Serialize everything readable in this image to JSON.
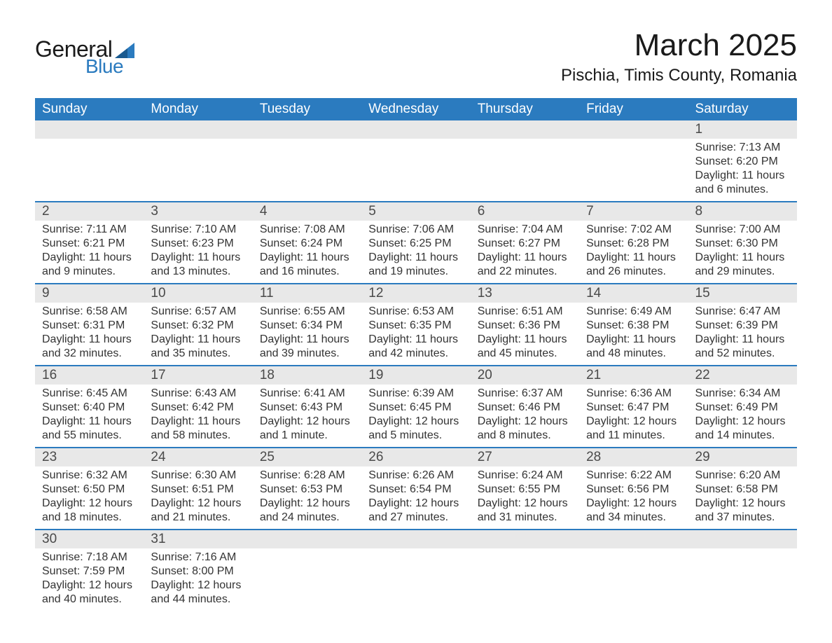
{
  "logo": {
    "general": "General",
    "blue": "Blue"
  },
  "title": "March 2025",
  "location": "Pischia, Timis County, Romania",
  "colors": {
    "header_bg": "#2b7bbf",
    "header_text": "#ffffff",
    "daynum_bg": "#e8e8e8",
    "row_border": "#2b7bbf",
    "body_text": "#333333",
    "title_text": "#1a1a1a",
    "logo_blue": "#2b7bbf",
    "page_bg": "#ffffff"
  },
  "day_headers": [
    "Sunday",
    "Monday",
    "Tuesday",
    "Wednesday",
    "Thursday",
    "Friday",
    "Saturday"
  ],
  "weeks": [
    [
      {
        "n": "",
        "sr": "",
        "ss": "",
        "dl": ""
      },
      {
        "n": "",
        "sr": "",
        "ss": "",
        "dl": ""
      },
      {
        "n": "",
        "sr": "",
        "ss": "",
        "dl": ""
      },
      {
        "n": "",
        "sr": "",
        "ss": "",
        "dl": ""
      },
      {
        "n": "",
        "sr": "",
        "ss": "",
        "dl": ""
      },
      {
        "n": "",
        "sr": "",
        "ss": "",
        "dl": ""
      },
      {
        "n": "1",
        "sr": "Sunrise: 7:13 AM",
        "ss": "Sunset: 6:20 PM",
        "dl": "Daylight: 11 hours and 6 minutes."
      }
    ],
    [
      {
        "n": "2",
        "sr": "Sunrise: 7:11 AM",
        "ss": "Sunset: 6:21 PM",
        "dl": "Daylight: 11 hours and 9 minutes."
      },
      {
        "n": "3",
        "sr": "Sunrise: 7:10 AM",
        "ss": "Sunset: 6:23 PM",
        "dl": "Daylight: 11 hours and 13 minutes."
      },
      {
        "n": "4",
        "sr": "Sunrise: 7:08 AM",
        "ss": "Sunset: 6:24 PM",
        "dl": "Daylight: 11 hours and 16 minutes."
      },
      {
        "n": "5",
        "sr": "Sunrise: 7:06 AM",
        "ss": "Sunset: 6:25 PM",
        "dl": "Daylight: 11 hours and 19 minutes."
      },
      {
        "n": "6",
        "sr": "Sunrise: 7:04 AM",
        "ss": "Sunset: 6:27 PM",
        "dl": "Daylight: 11 hours and 22 minutes."
      },
      {
        "n": "7",
        "sr": "Sunrise: 7:02 AM",
        "ss": "Sunset: 6:28 PM",
        "dl": "Daylight: 11 hours and 26 minutes."
      },
      {
        "n": "8",
        "sr": "Sunrise: 7:00 AM",
        "ss": "Sunset: 6:30 PM",
        "dl": "Daylight: 11 hours and 29 minutes."
      }
    ],
    [
      {
        "n": "9",
        "sr": "Sunrise: 6:58 AM",
        "ss": "Sunset: 6:31 PM",
        "dl": "Daylight: 11 hours and 32 minutes."
      },
      {
        "n": "10",
        "sr": "Sunrise: 6:57 AM",
        "ss": "Sunset: 6:32 PM",
        "dl": "Daylight: 11 hours and 35 minutes."
      },
      {
        "n": "11",
        "sr": "Sunrise: 6:55 AM",
        "ss": "Sunset: 6:34 PM",
        "dl": "Daylight: 11 hours and 39 minutes."
      },
      {
        "n": "12",
        "sr": "Sunrise: 6:53 AM",
        "ss": "Sunset: 6:35 PM",
        "dl": "Daylight: 11 hours and 42 minutes."
      },
      {
        "n": "13",
        "sr": "Sunrise: 6:51 AM",
        "ss": "Sunset: 6:36 PM",
        "dl": "Daylight: 11 hours and 45 minutes."
      },
      {
        "n": "14",
        "sr": "Sunrise: 6:49 AM",
        "ss": "Sunset: 6:38 PM",
        "dl": "Daylight: 11 hours and 48 minutes."
      },
      {
        "n": "15",
        "sr": "Sunrise: 6:47 AM",
        "ss": "Sunset: 6:39 PM",
        "dl": "Daylight: 11 hours and 52 minutes."
      }
    ],
    [
      {
        "n": "16",
        "sr": "Sunrise: 6:45 AM",
        "ss": "Sunset: 6:40 PM",
        "dl": "Daylight: 11 hours and 55 minutes."
      },
      {
        "n": "17",
        "sr": "Sunrise: 6:43 AM",
        "ss": "Sunset: 6:42 PM",
        "dl": "Daylight: 11 hours and 58 minutes."
      },
      {
        "n": "18",
        "sr": "Sunrise: 6:41 AM",
        "ss": "Sunset: 6:43 PM",
        "dl": "Daylight: 12 hours and 1 minute."
      },
      {
        "n": "19",
        "sr": "Sunrise: 6:39 AM",
        "ss": "Sunset: 6:45 PM",
        "dl": "Daylight: 12 hours and 5 minutes."
      },
      {
        "n": "20",
        "sr": "Sunrise: 6:37 AM",
        "ss": "Sunset: 6:46 PM",
        "dl": "Daylight: 12 hours and 8 minutes."
      },
      {
        "n": "21",
        "sr": "Sunrise: 6:36 AM",
        "ss": "Sunset: 6:47 PM",
        "dl": "Daylight: 12 hours and 11 minutes."
      },
      {
        "n": "22",
        "sr": "Sunrise: 6:34 AM",
        "ss": "Sunset: 6:49 PM",
        "dl": "Daylight: 12 hours and 14 minutes."
      }
    ],
    [
      {
        "n": "23",
        "sr": "Sunrise: 6:32 AM",
        "ss": "Sunset: 6:50 PM",
        "dl": "Daylight: 12 hours and 18 minutes."
      },
      {
        "n": "24",
        "sr": "Sunrise: 6:30 AM",
        "ss": "Sunset: 6:51 PM",
        "dl": "Daylight: 12 hours and 21 minutes."
      },
      {
        "n": "25",
        "sr": "Sunrise: 6:28 AM",
        "ss": "Sunset: 6:53 PM",
        "dl": "Daylight: 12 hours and 24 minutes."
      },
      {
        "n": "26",
        "sr": "Sunrise: 6:26 AM",
        "ss": "Sunset: 6:54 PM",
        "dl": "Daylight: 12 hours and 27 minutes."
      },
      {
        "n": "27",
        "sr": "Sunrise: 6:24 AM",
        "ss": "Sunset: 6:55 PM",
        "dl": "Daylight: 12 hours and 31 minutes."
      },
      {
        "n": "28",
        "sr": "Sunrise: 6:22 AM",
        "ss": "Sunset: 6:56 PM",
        "dl": "Daylight: 12 hours and 34 minutes."
      },
      {
        "n": "29",
        "sr": "Sunrise: 6:20 AM",
        "ss": "Sunset: 6:58 PM",
        "dl": "Daylight: 12 hours and 37 minutes."
      }
    ],
    [
      {
        "n": "30",
        "sr": "Sunrise: 7:18 AM",
        "ss": "Sunset: 7:59 PM",
        "dl": "Daylight: 12 hours and 40 minutes."
      },
      {
        "n": "31",
        "sr": "Sunrise: 7:16 AM",
        "ss": "Sunset: 8:00 PM",
        "dl": "Daylight: 12 hours and 44 minutes."
      },
      {
        "n": "",
        "sr": "",
        "ss": "",
        "dl": ""
      },
      {
        "n": "",
        "sr": "",
        "ss": "",
        "dl": ""
      },
      {
        "n": "",
        "sr": "",
        "ss": "",
        "dl": ""
      },
      {
        "n": "",
        "sr": "",
        "ss": "",
        "dl": ""
      },
      {
        "n": "",
        "sr": "",
        "ss": "",
        "dl": ""
      }
    ]
  ]
}
